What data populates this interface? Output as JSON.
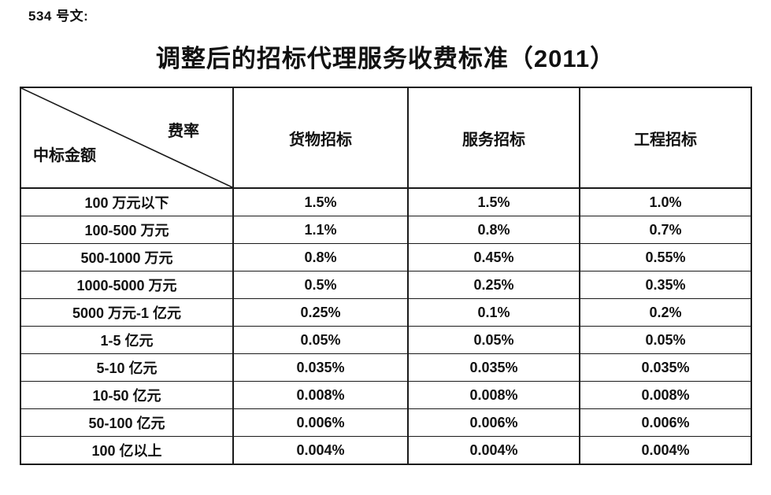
{
  "page": {
    "doc_label": "534 号文:",
    "title": "调整后的招标代理服务收费标准（2011）"
  },
  "table": {
    "corner": {
      "top_right": "费率",
      "bottom_left": "中标金额"
    },
    "columns": [
      "货物招标",
      "服务招标",
      "工程招标"
    ],
    "rows": [
      {
        "amount": "100 万元以下",
        "values": [
          "1.5%",
          "1.5%",
          "1.0%"
        ]
      },
      {
        "amount": "100-500 万元",
        "values": [
          "1.1%",
          "0.8%",
          "0.7%"
        ]
      },
      {
        "amount": "500-1000 万元",
        "values": [
          "0.8%",
          "0.45%",
          "0.55%"
        ]
      },
      {
        "amount": "1000-5000 万元",
        "values": [
          "0.5%",
          "0.25%",
          "0.35%"
        ]
      },
      {
        "amount": "5000 万元-1 亿元",
        "values": [
          "0.25%",
          "0.1%",
          "0.2%"
        ]
      },
      {
        "amount": "1-5 亿元",
        "values": [
          "0.05%",
          "0.05%",
          "0.05%"
        ]
      },
      {
        "amount": "5-10 亿元",
        "values": [
          "0.035%",
          "0.035%",
          "0.035%"
        ]
      },
      {
        "amount": "10-50 亿元",
        "values": [
          "0.008%",
          "0.008%",
          "0.008%"
        ]
      },
      {
        "amount": "50-100 亿元",
        "values": [
          "0.006%",
          "0.006%",
          "0.006%"
        ]
      },
      {
        "amount": "100 亿以上",
        "values": [
          "0.004%",
          "0.004%",
          "0.004%"
        ]
      }
    ],
    "colors": {
      "text": "#111111",
      "border": "#1a1a1a",
      "background": "#ffffff"
    }
  }
}
